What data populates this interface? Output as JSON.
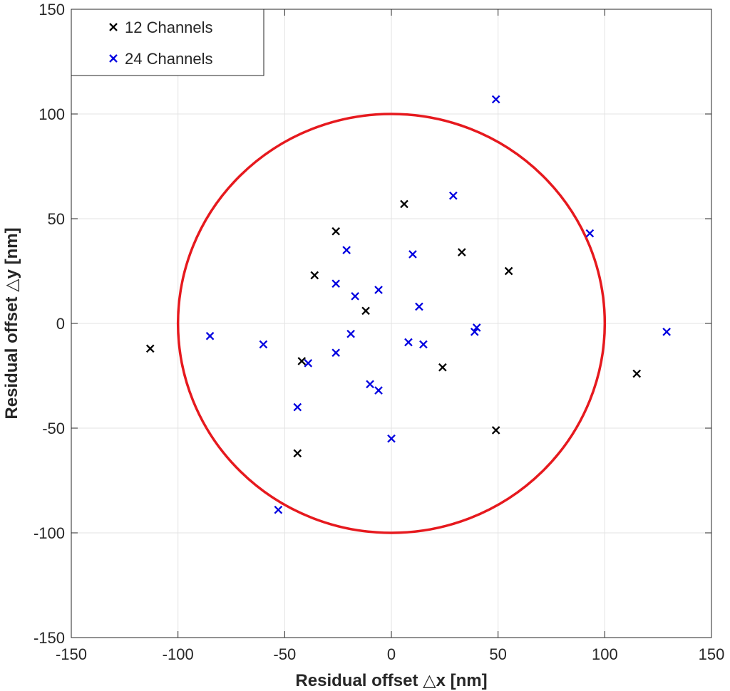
{
  "chart_data": {
    "type": "scatter",
    "xlabel": "Residual offset △x [nm]",
    "ylabel": "Residual offset △y [nm]",
    "xlim": [
      -150,
      150
    ],
    "ylim": [
      -150,
      150
    ],
    "xticks": [
      "-150",
      "-100",
      "-50",
      "0",
      "50",
      "100",
      "150"
    ],
    "yticks": [
      "150",
      "100",
      "50",
      "0",
      "-50",
      "-100",
      "-150"
    ],
    "grid": true,
    "legend_position": "top-left",
    "circle": {
      "center": [
        0,
        0
      ],
      "radius": 100,
      "color": "#e6191e"
    },
    "series": [
      {
        "name": "12 Channels",
        "marker": "x",
        "color": "#000000",
        "points": [
          [
            -113,
            -12
          ],
          [
            -26,
            44
          ],
          [
            -36,
            23
          ],
          [
            -12,
            6
          ],
          [
            -42,
            -18
          ],
          [
            -44,
            -62
          ],
          [
            6,
            57
          ],
          [
            33,
            34
          ],
          [
            55,
            25
          ],
          [
            24,
            -21
          ],
          [
            49,
            -51
          ],
          [
            115,
            -24
          ]
        ]
      },
      {
        "name": "24 Channels",
        "marker": "x",
        "color": "#0000e0",
        "points": [
          [
            -85,
            -6
          ],
          [
            -60,
            -10
          ],
          [
            -39,
            -19
          ],
          [
            -44,
            -40
          ],
          [
            -53,
            -89
          ],
          [
            -26,
            19
          ],
          [
            -21,
            35
          ],
          [
            -17,
            13
          ],
          [
            -6,
            16
          ],
          [
            -19,
            -5
          ],
          [
            -26,
            -14
          ],
          [
            -10,
            -29
          ],
          [
            -6,
            -32
          ],
          [
            0,
            -55
          ],
          [
            10,
            33
          ],
          [
            13,
            8
          ],
          [
            8,
            -9
          ],
          [
            15,
            -10
          ],
          [
            29,
            61
          ],
          [
            39,
            -4
          ],
          [
            40,
            -2
          ],
          [
            49,
            107
          ],
          [
            93,
            43
          ],
          [
            129,
            -4
          ]
        ]
      }
    ]
  }
}
